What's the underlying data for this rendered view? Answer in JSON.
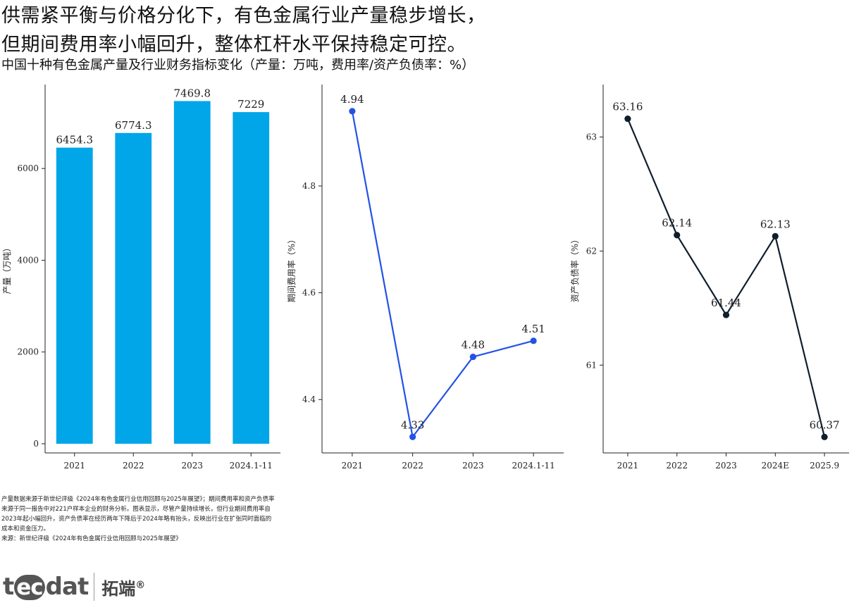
{
  "headline": {
    "line1": "供需紧平衡与价格分化下，有色金属行业产量稳步增长，",
    "line2": "但期间费用率小幅回升，整体杠杆水平保持稳定可控。"
  },
  "subtitle": "中国十种有色金属产量及行业财务指标变化（产量：万吨，费用率/资产负债率：%）",
  "chart_data": [
    {
      "type": "bar",
      "ylabel": "产量（万吨）",
      "categories": [
        "2021",
        "2022",
        "2023",
        "2024.1-11"
      ],
      "values": [
        6454.3,
        6774.3,
        7469.8,
        7229
      ],
      "value_labels": [
        "6454.3",
        "6774.3",
        "7469.8",
        "7229"
      ],
      "ylim": [
        -200,
        7830
      ],
      "yticks": [
        0,
        2000,
        4000,
        6000
      ],
      "color": "#00A6E8"
    },
    {
      "type": "line",
      "ylabel": "期间费用率（%）",
      "categories": [
        "2021",
        "2022",
        "2023",
        "2024.1-11"
      ],
      "values": [
        4.94,
        4.33,
        4.48,
        4.51
      ],
      "value_labels": [
        "4.94",
        "4.33",
        "4.48",
        "4.51"
      ],
      "ylim": [
        4.3,
        4.99
      ],
      "yticks": [
        4.4,
        4.6,
        4.8
      ],
      "ytick_labels": [
        "4.4",
        "4.6",
        "4.8"
      ],
      "color": "#2352E6"
    },
    {
      "type": "line",
      "ylabel": "资产负债率（%）",
      "categories": [
        "2021",
        "2022",
        "2023",
        "2024E",
        "2025.9"
      ],
      "values": [
        63.16,
        62.14,
        61.44,
        62.13,
        60.37
      ],
      "value_labels": [
        "63.16",
        "62.14",
        "61.44",
        "62.13",
        "60.37"
      ],
      "ylim": [
        60.23,
        63.46
      ],
      "yticks": [
        61,
        62,
        63
      ],
      "ytick_labels": [
        "61",
        "62",
        "63"
      ],
      "color": "#0F1E2D"
    }
  ],
  "notes": {
    "line1": "产量数据来源于新世纪评级《2024年有色金属行业信用回顾与2025年展望》；期间费用率和资产负债率",
    "line2": "来源于同一报告中对221户样本企业的财务分析。图表显示，尽管产量持续增长，但行业期间费用率自",
    "line3": "2023年起小幅回升，资产负债率在经历两年下降后于2024年略有抬头，反映出行业在扩张同时面临的",
    "line4": "成本和资金压力。",
    "source": "来源：新世纪评级《2024年有色金属行业信用回顾与2025年展望》"
  },
  "logo": {
    "t": "t",
    "ec": "ec",
    "dat": "dat",
    "chinese": "拓端",
    "reg": "®"
  }
}
